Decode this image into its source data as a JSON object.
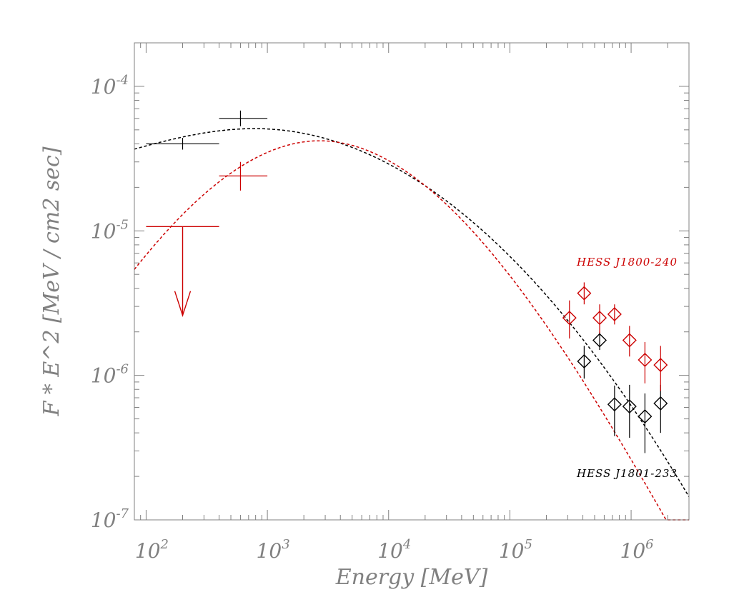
{
  "chart_data": {
    "type": "scatter",
    "title": "",
    "xlabel": "Energy [MeV]",
    "ylabel": "F * E^2 [MeV / cm2 sec]",
    "xscale": "log",
    "yscale": "log",
    "xlim": [
      80,
      3000000
    ],
    "ylim": [
      1e-07,
      0.0002
    ],
    "x_ticks": [
      {
        "value": 100,
        "base": "10",
        "exp": "2"
      },
      {
        "value": 1000,
        "base": "10",
        "exp": "3"
      },
      {
        "value": 10000,
        "base": "10",
        "exp": "4"
      },
      {
        "value": 100000,
        "base": "10",
        "exp": "5"
      },
      {
        "value": 1000000,
        "base": "10",
        "exp": "6"
      }
    ],
    "y_ticks": [
      {
        "value": 1e-07,
        "base": "10",
        "exp": "-7"
      },
      {
        "value": 1e-06,
        "base": "10",
        "exp": "-6"
      },
      {
        "value": 1e-05,
        "base": "10",
        "exp": "-5"
      },
      {
        "value": 0.0001,
        "base": "10",
        "exp": "-4"
      }
    ],
    "series": [
      {
        "name": "HESS J1801-233",
        "color": "#000000",
        "fermi_points": [
          {
            "x": 200,
            "xlo": 100,
            "xhi": 400,
            "y": 4e-05,
            "ylo": 3.65e-05,
            "yhi": 4.4e-05
          },
          {
            "x": 600,
            "xlo": 400,
            "xhi": 1000,
            "y": 6e-05,
            "ylo": 5.3e-05,
            "yhi": 6.8e-05
          }
        ],
        "hess_points": [
          {
            "x": 410000,
            "y": 1.25e-06,
            "ylo": 9.5e-07,
            "yhi": 1.6e-06
          },
          {
            "x": 550000,
            "y": 1.75e-06,
            "ylo": 1.5e-06,
            "yhi": 2e-06
          },
          {
            "x": 730000,
            "y": 6.3e-07,
            "ylo": 3.8e-07,
            "yhi": 8.5e-07
          },
          {
            "x": 970000,
            "y": 6.1e-07,
            "ylo": 3.7e-07,
            "yhi": 8.6e-07
          },
          {
            "x": 1300000,
            "y": 5.2e-07,
            "ylo": 2.9e-07,
            "yhi": 7.5e-07
          },
          {
            "x": 1750000,
            "y": 6.4e-07,
            "ylo": 4e-07,
            "yhi": 8.6e-07
          }
        ],
        "model": {
          "style": "dashed",
          "peak_x": 780,
          "peak_y": 5.1e-05,
          "a1": -0.2,
          "a2": 0.028,
          "a3": 0.0275
        }
      },
      {
        "name": "HESS J1800-240",
        "color": "#cc0000",
        "fermi_points": [
          {
            "x": 600,
            "xlo": 400,
            "xhi": 1000,
            "y": 2.4e-05,
            "ylo": 1.9e-05,
            "yhi": 3e-05
          }
        ],
        "upper_limits": [
          {
            "x": 200,
            "xlo": 100,
            "xhi": 400,
            "y": 1.07e-05,
            "arrow_to": 2.6e-06
          }
        ],
        "hess_points": [
          {
            "x": 310000,
            "y": 2.5e-06,
            "ylo": 1.8e-06,
            "yhi": 3.3e-06
          },
          {
            "x": 410000,
            "y": 3.7e-06,
            "ylo": 3.1e-06,
            "yhi": 4.4e-06
          },
          {
            "x": 550000,
            "y": 2.5e-06,
            "ylo": 1.95e-06,
            "yhi": 3.1e-06
          },
          {
            "x": 730000,
            "y": 2.65e-06,
            "ylo": 2.25e-06,
            "yhi": 3.1e-06
          },
          {
            "x": 970000,
            "y": 1.75e-06,
            "ylo": 1.35e-06,
            "yhi": 2.2e-06
          },
          {
            "x": 1300000,
            "y": 1.28e-06,
            "ylo": 8.8e-07,
            "yhi": 1.7e-06
          },
          {
            "x": 1750000,
            "y": 1.18e-06,
            "ylo": 7.8e-07,
            "yhi": 1.6e-06
          }
        ],
        "model": {
          "style": "dashed",
          "peak_x": 2700,
          "peak_y": 4.2e-05,
          "a1": -0.45,
          "a2": 0.045,
          "a3": 0.0
        }
      }
    ]
  }
}
